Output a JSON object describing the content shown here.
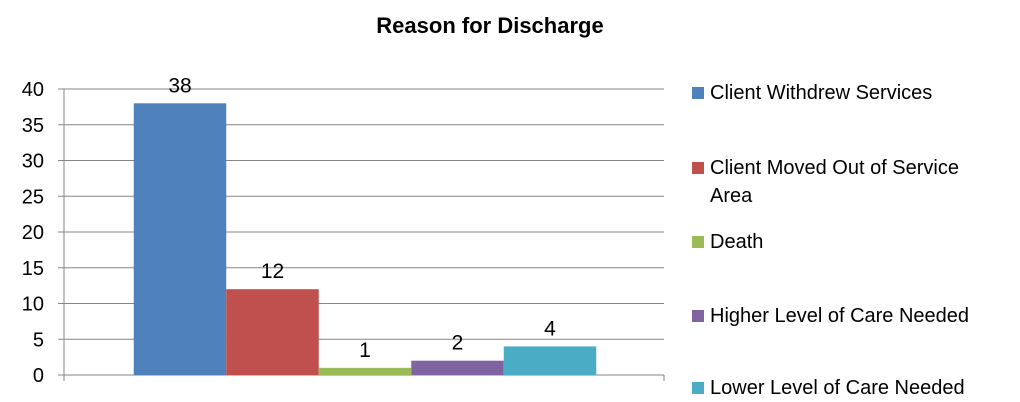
{
  "chart_data": {
    "type": "bar",
    "title": "Reason for Discharge",
    "xlabel": "",
    "ylabel": "",
    "ylim": [
      0,
      40
    ],
    "yticks": [
      "0",
      "5",
      "10",
      "15",
      "20",
      "25",
      "30",
      "35",
      "40"
    ],
    "grid": true,
    "legend_position": "right",
    "series": [
      {
        "name": "Client Withdrew Services",
        "values": [
          38
        ],
        "color": "#4F81BD"
      },
      {
        "name": "Client Moved Out of Service Area",
        "values": [
          12
        ],
        "color": "#C0504D"
      },
      {
        "name": "Death",
        "values": [
          1
        ],
        "color": "#9BBB59"
      },
      {
        "name": "Higher Level of Care Needed",
        "values": [
          2
        ],
        "color": "#8064A2"
      },
      {
        "name": "Lower Level of Care Needed",
        "values": [
          4
        ],
        "color": "#4BACC6"
      }
    ]
  }
}
